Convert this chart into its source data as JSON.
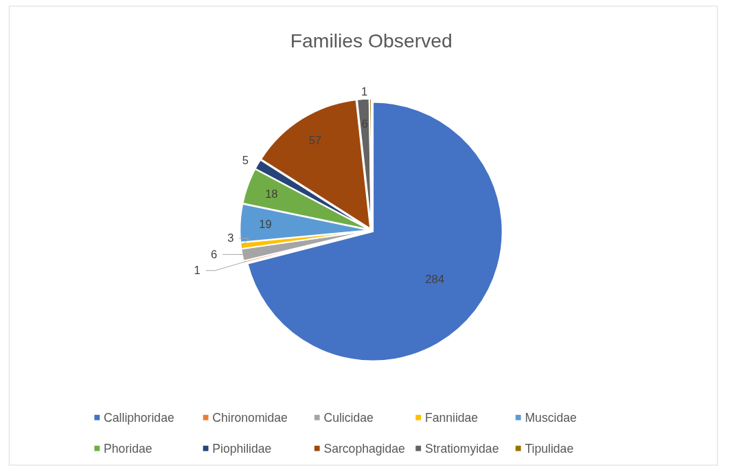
{
  "chart_data": {
    "type": "pie",
    "title": "Families Observed",
    "categories": [
      "Calliphoridae",
      "Chironomidae",
      "Culicidae",
      "Fanniidae",
      "Muscidae",
      "Phoridae",
      "Piophilidae",
      "Sarcophagidae",
      "Stratiomyidae",
      "Tipulidae"
    ],
    "values": [
      284,
      1,
      6,
      3,
      19,
      18,
      5,
      57,
      6,
      1
    ],
    "colors": [
      "#4472c4",
      "#ed7d31",
      "#a5a5a5",
      "#ffc000",
      "#5b9bd5",
      "#70ad47",
      "#264478",
      "#9e480e",
      "#636363",
      "#997300"
    ],
    "data_labels": true,
    "legend": "bottom"
  }
}
